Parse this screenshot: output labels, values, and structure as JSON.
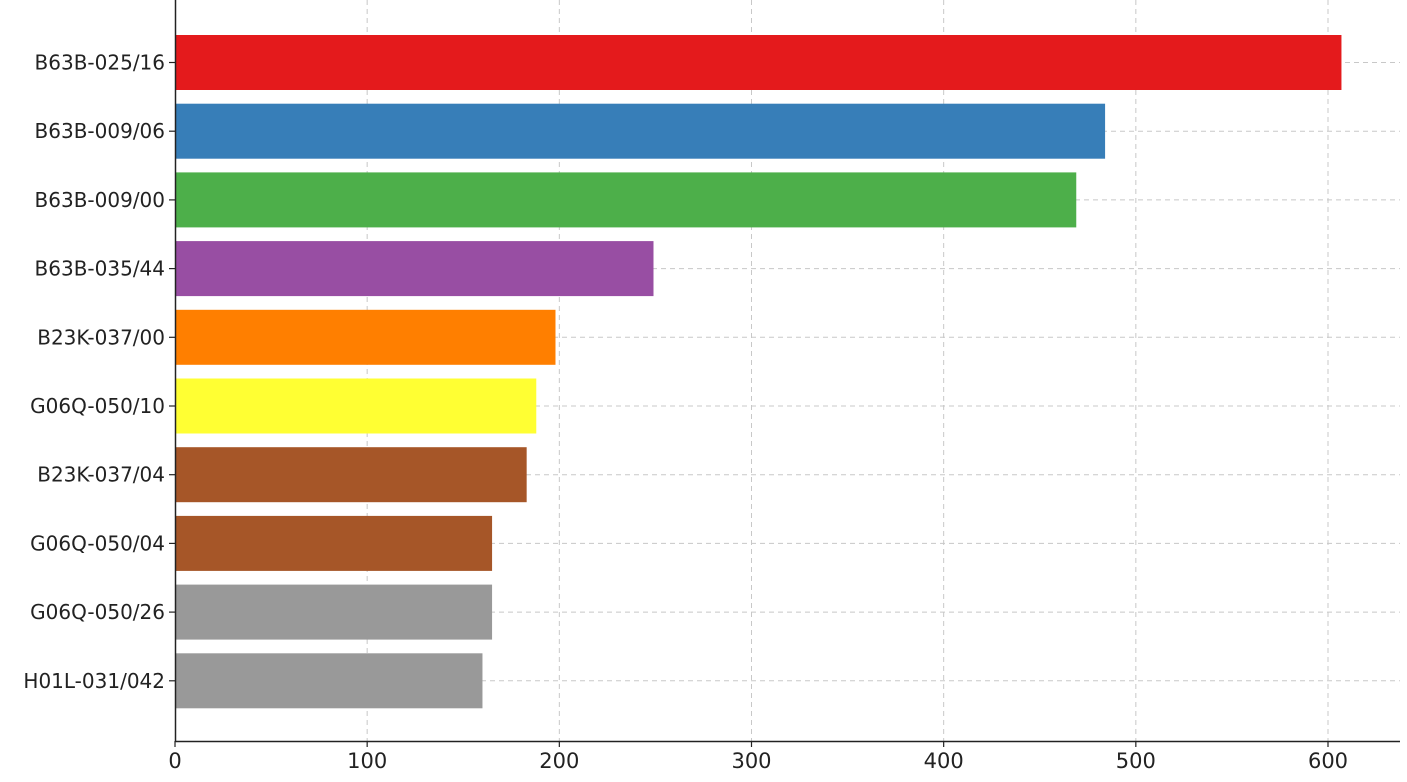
{
  "chart_data": {
    "type": "bar",
    "orientation": "horizontal",
    "title": "",
    "xlabel": "",
    "ylabel": "",
    "xlim": [
      0,
      640
    ],
    "x_ticks": [
      0,
      100,
      200,
      300,
      400,
      500,
      600
    ],
    "grid": true,
    "grid_style": "dashed",
    "legend": false,
    "categories": [
      "B63B-025/16",
      "B63B-009/06",
      "B63B-009/00",
      "B63B-035/44",
      "B23K-037/00",
      "G06Q-050/10",
      "B23K-037/04",
      "G06Q-050/04",
      "G06Q-050/26",
      "H01L-031/042"
    ],
    "values": [
      607,
      484,
      469,
      249,
      198,
      188,
      183,
      165,
      165,
      160
    ],
    "colors": [
      "#e41a1c",
      "#377eb8",
      "#4daf4a",
      "#984ea3",
      "#ff7f00",
      "#ffff33",
      "#a65628",
      "#a65628",
      "#999999",
      "#999999"
    ]
  }
}
